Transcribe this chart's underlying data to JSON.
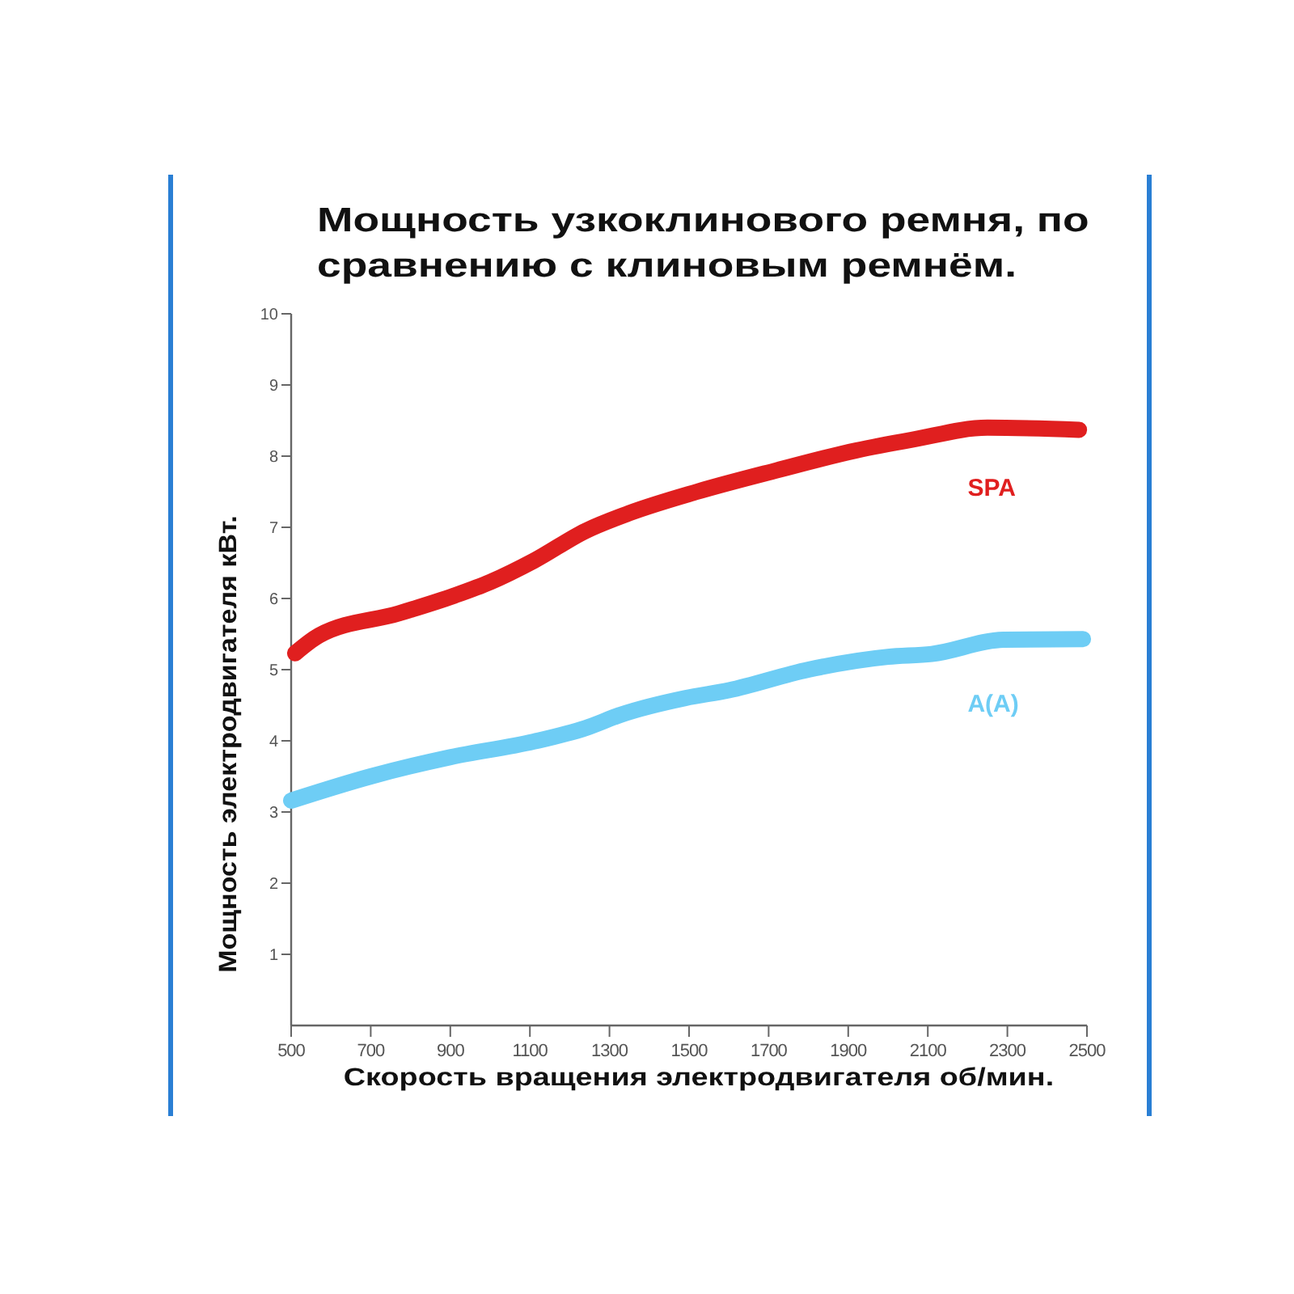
{
  "chart_data": {
    "type": "line",
    "title": "Мощность узкоклинового ремня, по сравнению с клиновым ремнём.",
    "xlabel": "Скорость вращения электродвигателя об/мин.",
    "ylabel": "Мощность электродвигателя кВт.",
    "xlim": [
      500,
      2500
    ],
    "xticks": [
      500,
      700,
      900,
      1100,
      1300,
      1500,
      1700,
      1900,
      2100,
      2300,
      2500
    ],
    "ylim": [
      0,
      10
    ],
    "yticks": [
      1,
      2,
      3,
      4,
      5,
      6,
      7,
      8,
      9,
      10
    ],
    "series": [
      {
        "name": "SPA",
        "color": "#e01f1f",
        "x": [
          510,
          570,
          770,
          910,
          1000,
          1110,
          1240,
          1350,
          1520,
          1720,
          1920,
          2060,
          2250,
          2480
        ],
        "values": [
          5.23,
          5.48,
          5.79,
          6.04,
          6.23,
          6.53,
          6.95,
          7.2,
          7.5,
          7.8,
          8.08,
          8.23,
          8.4,
          8.37
        ]
      },
      {
        "name": "A(A)",
        "color": "#6ecdf5",
        "x": [
          500,
          700,
          900,
          1110,
          1240,
          1330,
          1490,
          1600,
          1800,
          2000,
          2110,
          2290,
          2490
        ],
        "values": [
          3.16,
          3.5,
          3.77,
          3.99,
          4.18,
          4.37,
          4.6,
          4.71,
          5.0,
          5.18,
          5.22,
          5.42,
          5.43
        ]
      }
    ]
  }
}
